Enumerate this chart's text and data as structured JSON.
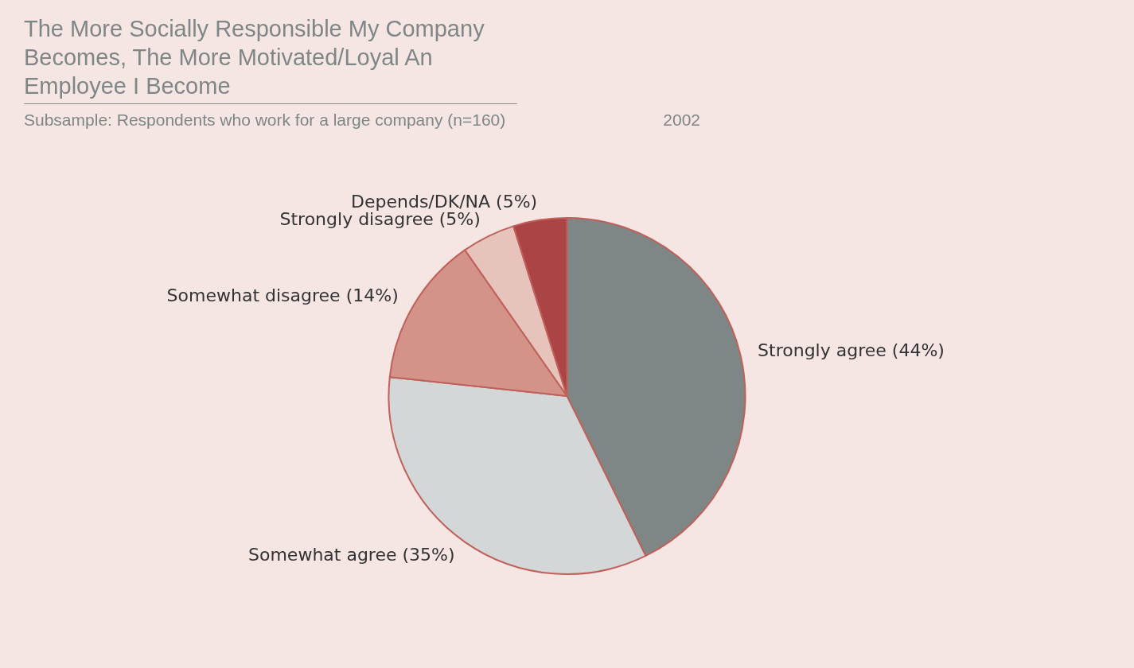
{
  "chart_data": {
    "type": "pie",
    "title": "The More Socially Responsible My Company Becomes, The More Motivated/Loyal An Employee I Become",
    "subtitle": "Subsample: Respondents who work for a large company (n=160)",
    "annotations": [
      "2002"
    ],
    "categories": [
      "Strongly agree (44%)",
      "Somewhat agree (35%)",
      "Somewhat disagree (14%)",
      "Strongly disagree (5%)",
      "Depends/DK/NA (5%)"
    ],
    "values": [
      44,
      35,
      14,
      5,
      5
    ],
    "colors": [
      "#7f8786",
      "#d3d7d8",
      "#d49389",
      "#e6c3bb",
      "#ab4444"
    ],
    "legend": false
  }
}
